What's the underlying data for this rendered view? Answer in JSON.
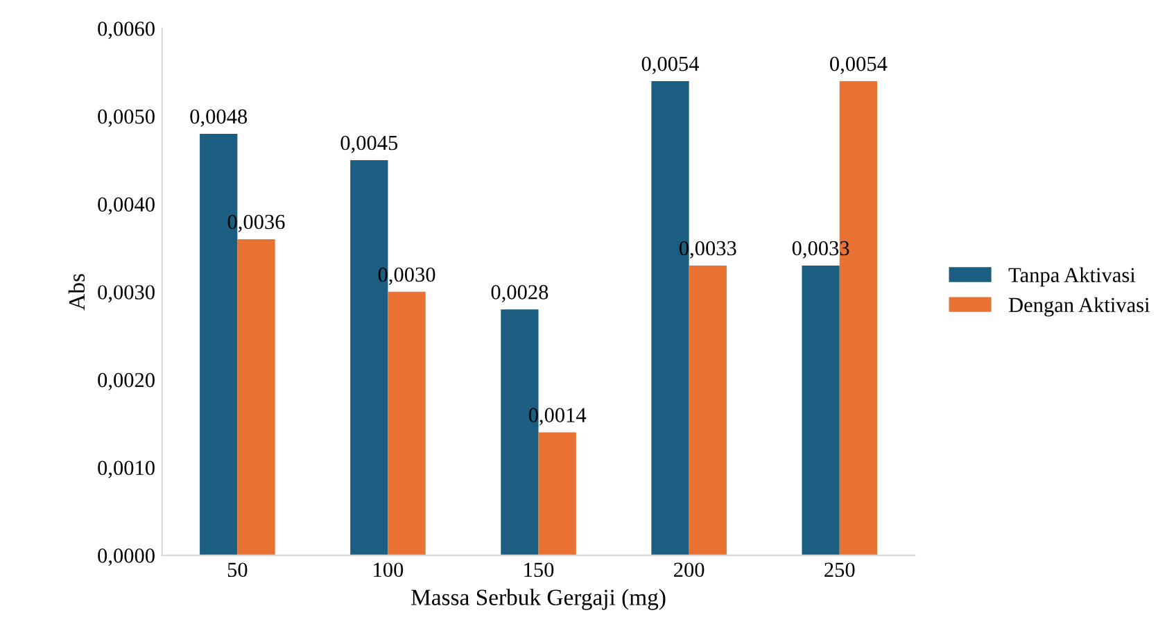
{
  "chart_data": {
    "type": "bar",
    "xlabel": "Massa Serbuk Gergaji (mg)",
    "ylabel": "Abs",
    "categories": [
      "50",
      "100",
      "150",
      "200",
      "250"
    ],
    "series": [
      {
        "name": "Tanpa Aktivasi",
        "color": "#1b5e82",
        "values": [
          0.0048,
          0.0045,
          0.0028,
          0.0054,
          0.0033
        ],
        "value_labels": [
          "0,0048",
          "0,0045",
          "0,0028",
          "0,0054",
          "0,0033"
        ]
      },
      {
        "name": "Dengan Aktivasi",
        "color": "#e97132",
        "values": [
          0.0036,
          0.003,
          0.0014,
          0.0033,
          0.0054
        ],
        "value_labels": [
          "0,0036",
          "0,0030",
          "0,0014",
          "0,0033",
          "0,0054"
        ]
      }
    ],
    "ylim": [
      0,
      0.006
    ],
    "yticks": [
      {
        "value": 0,
        "label": "0,0000"
      },
      {
        "value": 0.001,
        "label": "0,0010"
      },
      {
        "value": 0.002,
        "label": "0,0020"
      },
      {
        "value": 0.003,
        "label": "0,0030"
      },
      {
        "value": 0.004,
        "label": "0,0040"
      },
      {
        "value": 0.005,
        "label": "0,0050"
      },
      {
        "value": 0.006,
        "label": "0,0060"
      }
    ],
    "grid": false,
    "legend": "right"
  }
}
